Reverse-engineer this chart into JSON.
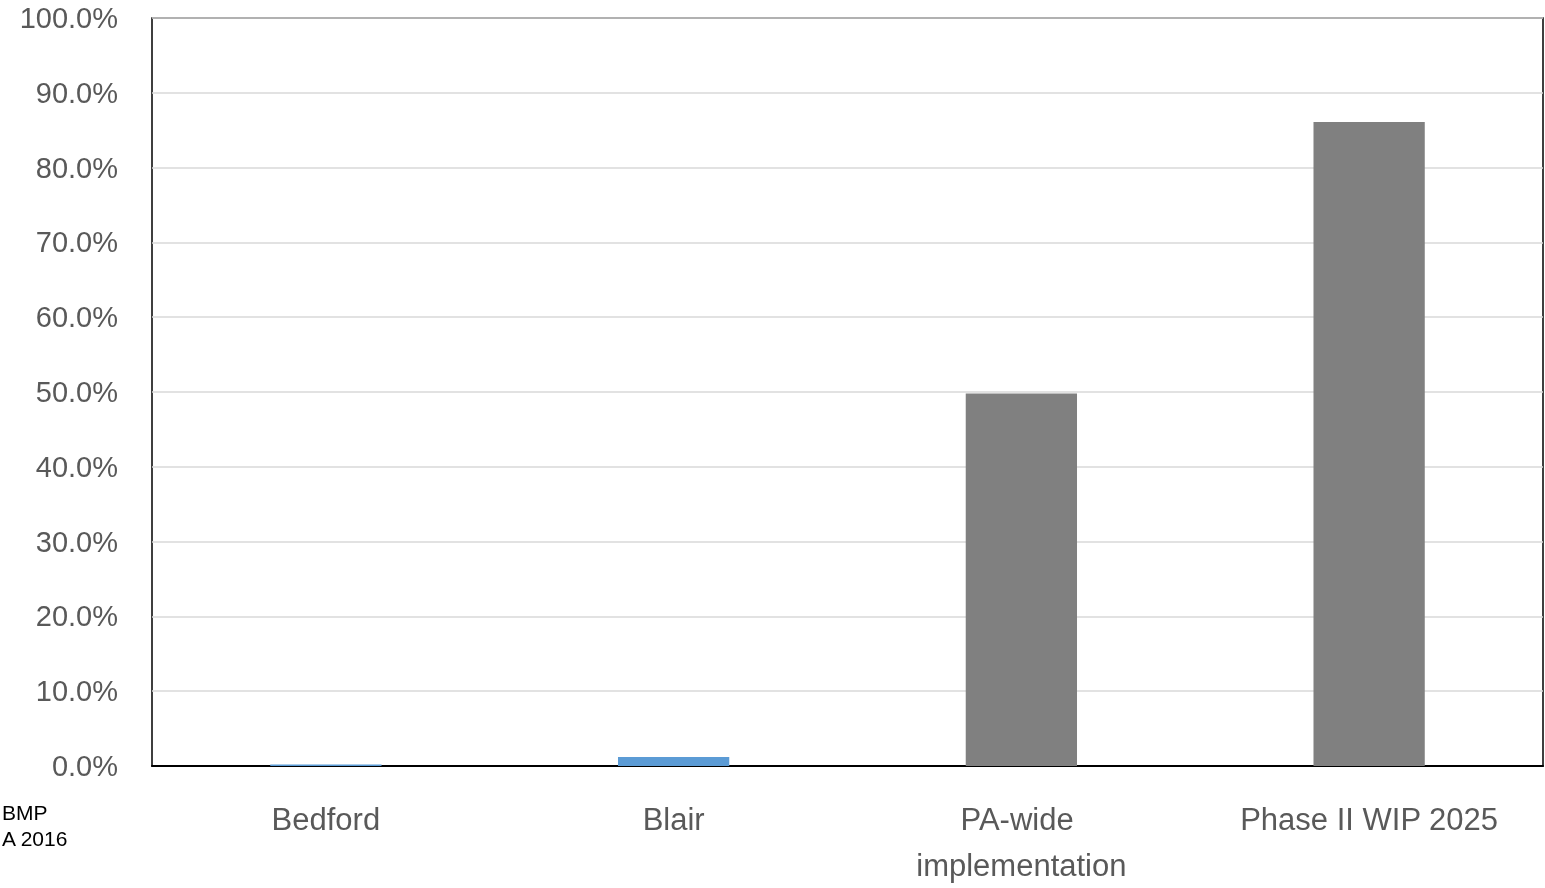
{
  "chart_data": {
    "type": "bar",
    "categories": [
      "Bedford",
      "Blair",
      "PA-wide implementation",
      "Phase II WIP 2025"
    ],
    "values": [
      0.2,
      1.2,
      49.8,
      86.1
    ],
    "colors": [
      "#5b9bd5",
      "#5b9bd5",
      "#808080",
      "#808080"
    ],
    "ylim": [
      0,
      100
    ],
    "yticks": [
      {
        "value": 0,
        "label": "0.0%"
      },
      {
        "value": 10,
        "label": "10.0%"
      },
      {
        "value": 20,
        "label": "20.0%"
      },
      {
        "value": 30,
        "label": "30.0%"
      },
      {
        "value": 40,
        "label": "40.0%"
      },
      {
        "value": 50,
        "label": "50.0%"
      },
      {
        "value": 60,
        "label": "60.0%"
      },
      {
        "value": 70,
        "label": "70.0%"
      },
      {
        "value": 80,
        "label": "80.0%"
      },
      {
        "value": 90,
        "label": "90.0%"
      },
      {
        "value": 100,
        "label": "100.0%"
      }
    ],
    "grid": "y",
    "annotations": [
      "BMP",
      "A 2016"
    ]
  }
}
